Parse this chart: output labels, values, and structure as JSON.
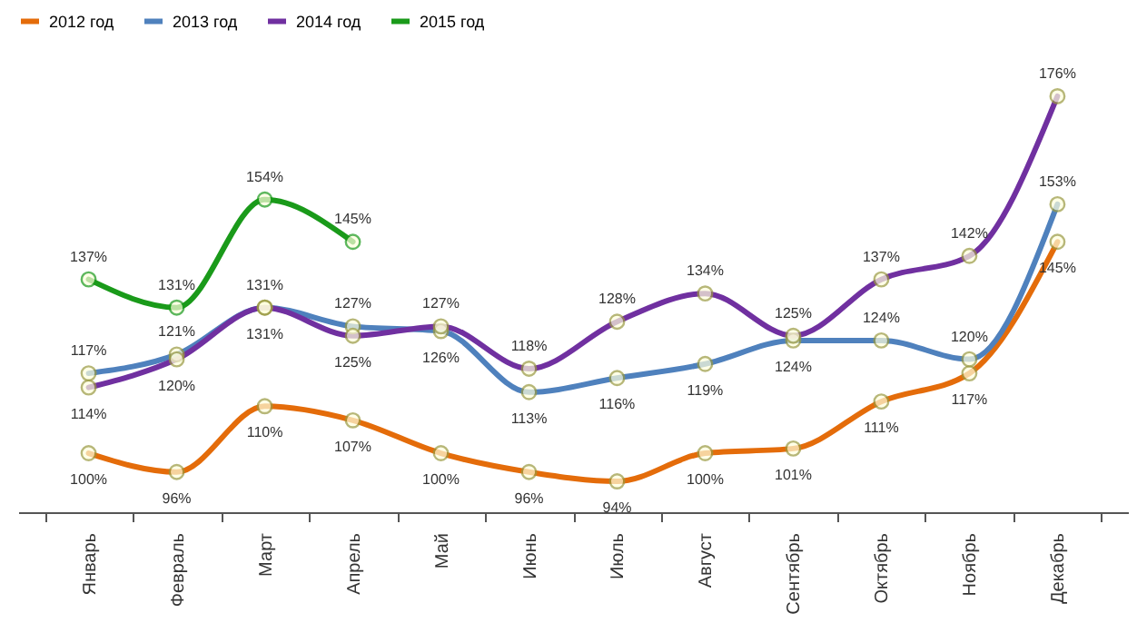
{
  "chart_data": {
    "type": "line",
    "categories": [
      "Январь",
      "Февраль",
      "Март",
      "Апрель",
      "Май",
      "Июнь",
      "Июль",
      "Август",
      "Сентябрь",
      "Октябрь",
      "Ноябрь",
      "Декабрь"
    ],
    "series": [
      {
        "name": "2012 год",
        "color": "#e46c0a",
        "values": [
          100,
          96,
          110,
          107,
          100,
          96,
          94,
          100,
          101,
          111,
          117,
          145
        ],
        "value_labels": [
          "100%",
          "96%",
          "110%",
          "107%",
          "100%",
          "96%",
          "94%",
          "100%",
          "101%",
          "111%",
          "117%",
          "145%"
        ]
      },
      {
        "name": "2013 год",
        "color": "#4f81bd",
        "values": [
          117,
          121,
          131,
          127,
          126,
          113,
          116,
          119,
          124,
          124,
          120,
          153
        ],
        "value_labels": [
          "117%",
          "121%",
          "131%",
          "127%",
          "126%",
          "113%",
          "116%",
          "119%",
          "124%",
          "124%",
          "120%",
          "153%"
        ]
      },
      {
        "name": "2014 год",
        "color": "#7030a0",
        "values": [
          114,
          120,
          131,
          125,
          127,
          118,
          128,
          134,
          125,
          137,
          142,
          176
        ],
        "value_labels": [
          "114%",
          "120%",
          "131%",
          "125%",
          "127%",
          "118%",
          "128%",
          "134%",
          "125%",
          "137%",
          "142%",
          "176%"
        ]
      },
      {
        "name": "2015 год",
        "color": "#1a9a1a",
        "values": [
          137,
          131,
          154,
          145,
          null,
          null,
          null,
          null,
          null,
          null,
          null,
          null
        ],
        "value_labels": [
          "137%",
          "131%",
          "154%",
          "145%",
          null,
          null,
          null,
          null,
          null,
          null,
          null,
          null
        ]
      }
    ],
    "legend": "top",
    "marker": "circle",
    "line_style": "solid",
    "tick_labels": "x"
  }
}
